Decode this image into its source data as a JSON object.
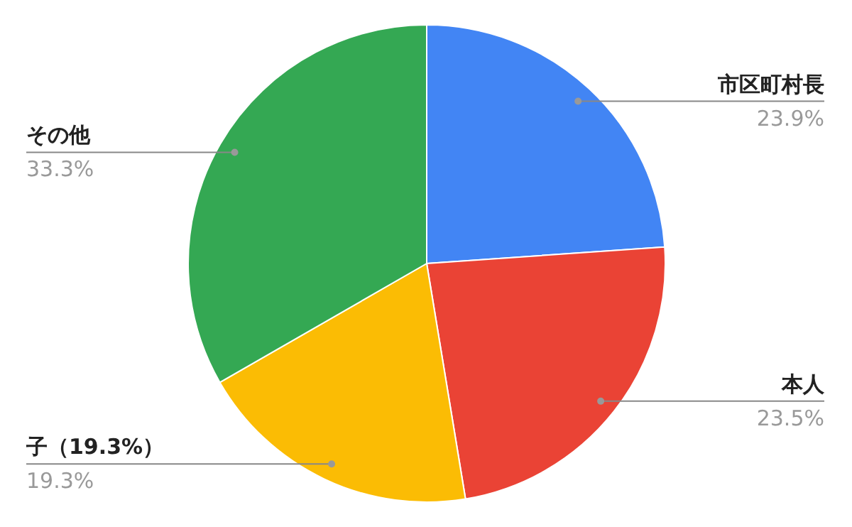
{
  "chart_data": {
    "type": "pie",
    "categories": [
      "市区町村長",
      "本人",
      "子（19.3%）",
      "その他"
    ],
    "values": [
      23.9,
      23.5,
      19.3,
      33.3
    ],
    "colors": [
      "#4285f4",
      "#ea4335",
      "#fbbc04",
      "#34a853"
    ],
    "value_labels": [
      "23.9%",
      "23.5%",
      "19.3%",
      "33.3%"
    ]
  }
}
